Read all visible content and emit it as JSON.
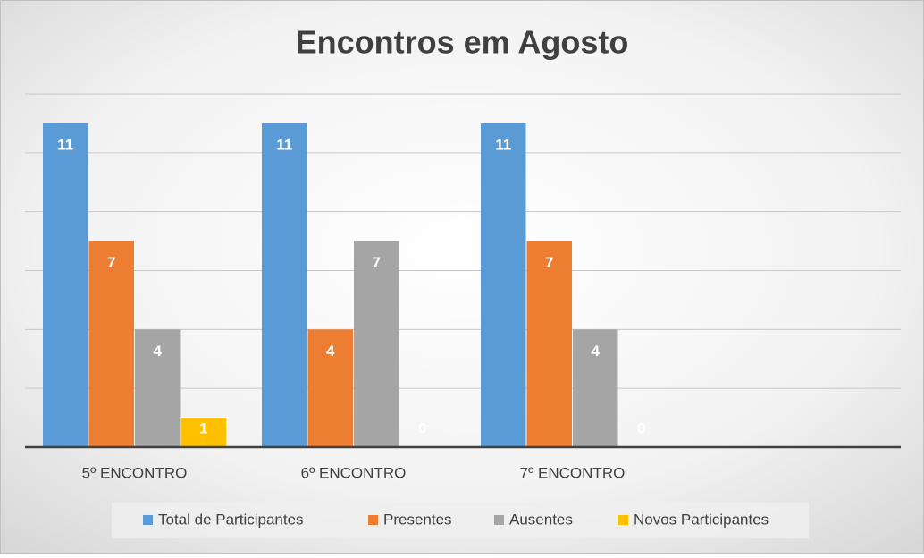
{
  "chart_data": {
    "type": "bar",
    "title": "Encontros em Agosto",
    "categories": [
      "5º ENCONTRO",
      "6º ENCONTRO",
      "7º ENCONTRO",
      null
    ],
    "series": [
      {
        "name": "Total de Participantes",
        "color": "#5b9bd5",
        "values": [
          11,
          11,
          11,
          null
        ]
      },
      {
        "name": "Presentes",
        "color": "#ed7d31",
        "values": [
          7,
          4,
          7,
          null
        ]
      },
      {
        "name": "Ausentes",
        "color": "#a5a5a5",
        "values": [
          4,
          7,
          4,
          null
        ]
      },
      {
        "name": "Novos Participantes",
        "color": "#ffc000",
        "values": [
          1,
          0,
          0,
          null
        ]
      }
    ],
    "ylim": [
      0,
      12
    ],
    "yticks": [
      0,
      2,
      4,
      6,
      8,
      10,
      12
    ],
    "grid": true,
    "legend": "bottom"
  }
}
